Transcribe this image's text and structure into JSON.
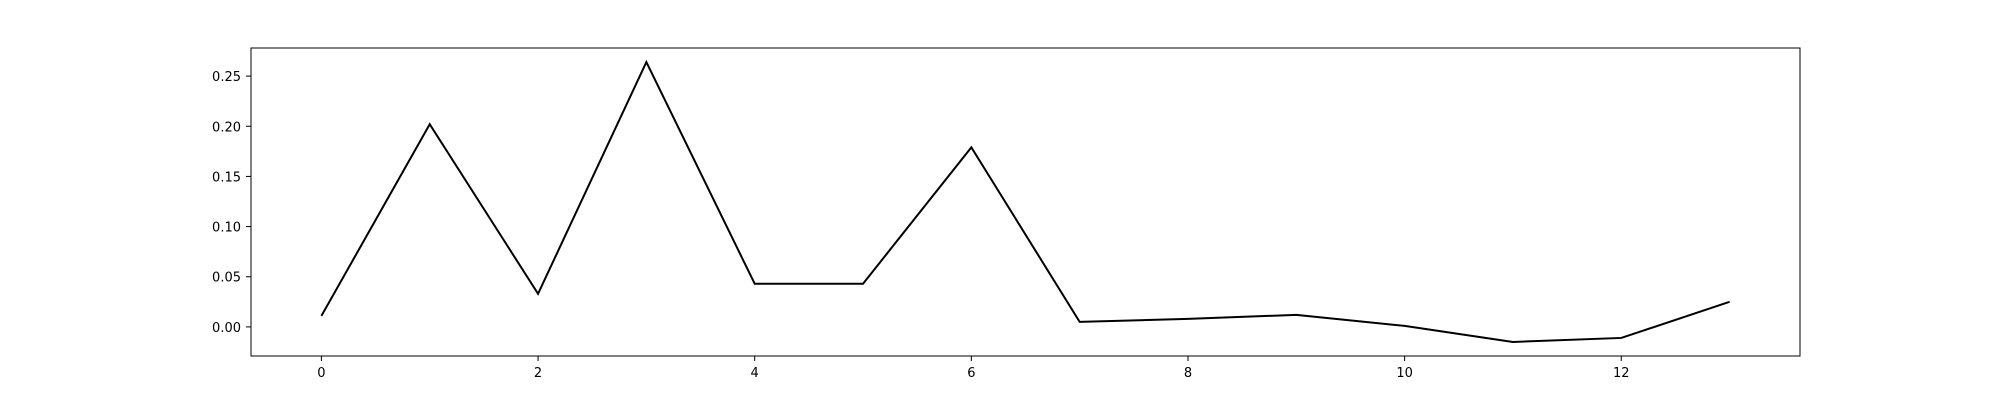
{
  "chart_data": {
    "type": "line",
    "title": "",
    "xlabel": "",
    "ylabel": "",
    "x": [
      0,
      1,
      2,
      3,
      4,
      5,
      6,
      7,
      8,
      9,
      10,
      11,
      12,
      13
    ],
    "series": [
      {
        "values": [
          0.011,
          0.202,
          0.033,
          0.264,
          0.043,
          0.043,
          0.179,
          0.005,
          0.008,
          0.012,
          0.001,
          -0.015,
          -0.011,
          0.025
        ],
        "color": "#000000"
      }
    ],
    "xlim": [
      -0.65,
      13.65
    ],
    "ylim": [
      -0.029,
      0.278
    ],
    "xticks": [
      0,
      2,
      4,
      6,
      8,
      10,
      12
    ],
    "xtick_labels": [
      "0",
      "2",
      "4",
      "6",
      "8",
      "10",
      "12"
    ],
    "yticks": [
      0.0,
      0.05,
      0.1,
      0.15,
      0.2,
      0.25
    ],
    "ytick_labels": [
      "0.00",
      "0.05",
      "0.10",
      "0.15",
      "0.20",
      "0.25"
    ],
    "grid": false,
    "legend": "none"
  }
}
